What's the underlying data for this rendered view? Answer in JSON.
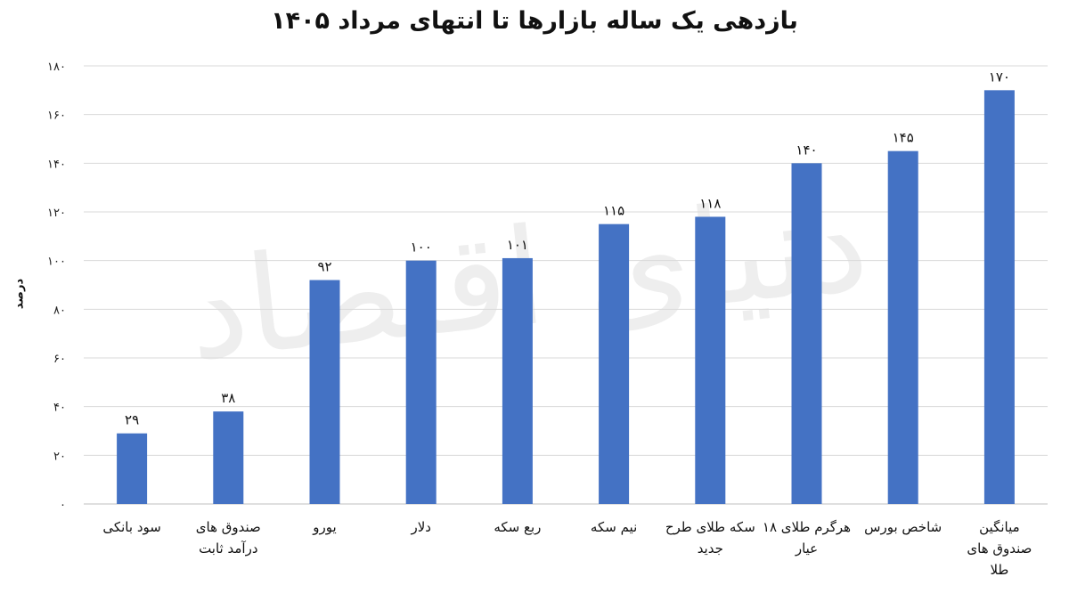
{
  "chart_data": {
    "type": "bar",
    "title": "بازدهی یک ساله بازارها تا انتهای مرداد ۱۴۰۵",
    "ylabel": "درصد",
    "xlabel": "",
    "ylim": [
      0,
      180
    ],
    "yticks": [
      "۰",
      "۲۰",
      "۴۰",
      "۶۰",
      "۸۰",
      "۱۰۰",
      "۱۲۰",
      "۱۴۰",
      "۱۶۰",
      "۱۸۰"
    ],
    "grid": true,
    "legend": "none",
    "bar_color": "#4472C4",
    "categories": [
      [
        "سود بانکی"
      ],
      [
        "صندوق های",
        "درآمد ثابت"
      ],
      [
        "یورو"
      ],
      [
        "دلار"
      ],
      [
        "ربع سکه"
      ],
      [
        "نیم سکه"
      ],
      [
        "سکه طلای طرح",
        "جدید"
      ],
      [
        "هرگرم طلای ۱۸",
        "عیار"
      ],
      [
        "شاخص بورس"
      ],
      [
        "میانگین",
        "صندوق های",
        "طلا"
      ]
    ],
    "values": [
      29,
      38,
      92,
      100,
      101,
      115,
      118,
      140,
      145,
      170
    ],
    "value_labels": [
      "۲۹",
      "۳۸",
      "۹۲",
      "۱۰۰",
      "۱۰۱",
      "۱۱۵",
      "۱۱۸",
      "۱۴۰",
      "۱۴۵",
      "۱۷۰"
    ]
  },
  "watermark": "دنیای اقتصاد"
}
